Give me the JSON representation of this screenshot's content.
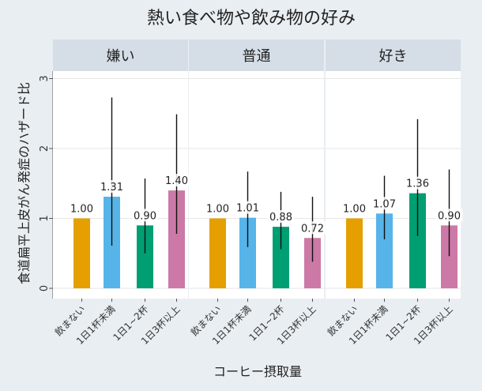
{
  "chart_data": {
    "type": "bar",
    "title": "熱い食べ物や飲み物の好み",
    "xlabel": "コーヒー摂取量",
    "ylabel": "食道扁平上皮がん発症のハザード比",
    "ylim": [
      0,
      3.1
    ],
    "yticks": [
      0,
      1,
      2,
      3
    ],
    "categories": [
      "飲まない",
      "1日1杯未満",
      "1日1~2杯",
      "1日3杯以上"
    ],
    "colors": [
      "#e69f00",
      "#56b4e9",
      "#009e73",
      "#cc79a7"
    ],
    "facets": [
      {
        "name": "嫌い",
        "values": [
          1.0,
          1.31,
          0.9,
          1.4
        ],
        "labels": [
          "1.00",
          "1.31",
          "0.90",
          "1.40"
        ],
        "ci_low": [
          null,
          0.61,
          0.5,
          0.78
        ],
        "ci_high": [
          null,
          2.73,
          1.57,
          2.49
        ]
      },
      {
        "name": "普通",
        "values": [
          1.0,
          1.01,
          0.88,
          0.72
        ],
        "labels": [
          "1.00",
          "1.01",
          "0.88",
          "0.72"
        ],
        "ci_low": [
          null,
          0.59,
          0.56,
          0.38
        ],
        "ci_high": [
          null,
          1.67,
          1.38,
          1.31
        ]
      },
      {
        "name": "好き",
        "values": [
          1.0,
          1.07,
          1.36,
          0.9
        ],
        "labels": [
          "1.00",
          "1.07",
          "1.36",
          "0.90"
        ],
        "ci_low": [
          null,
          0.7,
          0.75,
          0.46
        ],
        "ci_high": [
          null,
          1.61,
          2.42,
          1.7
        ]
      }
    ]
  }
}
